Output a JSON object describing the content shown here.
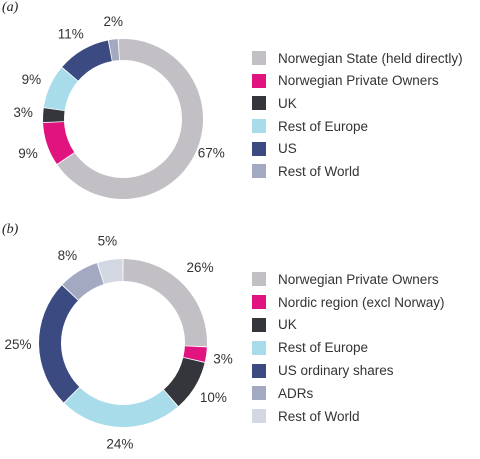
{
  "chart_data": [
    {
      "panel_label": "(a)",
      "type": "pie",
      "title": "",
      "categories": [
        "Norwegian State (held directly)",
        "Norwegian Private Owners",
        "UK",
        "Rest of Europe",
        "US",
        "Rest of World"
      ],
      "values": [
        67,
        9,
        3,
        9,
        11,
        2
      ],
      "labels": [
        "67%",
        "9%",
        "3%",
        "9%",
        "11%",
        "2%"
      ],
      "colors": [
        "#c2c0c5",
        "#e0137f",
        "#35363b",
        "#a9dcea",
        "#3b4b82",
        "#a4a9c2"
      ],
      "legend_position": "right"
    },
    {
      "panel_label": "(b)",
      "type": "pie",
      "title": "",
      "categories": [
        "Norwegian Private Owners",
        "Nordic region (excl Norway)",
        "UK",
        "Rest of Europe",
        "US ordinary shares",
        "ADRs",
        "Rest of World"
      ],
      "values": [
        26,
        3,
        10,
        24,
        25,
        8,
        5
      ],
      "labels": [
        "26%",
        "3%",
        "10%",
        "24%",
        "25%",
        "8%",
        "5%"
      ],
      "colors": [
        "#c2c0c5",
        "#e0137f",
        "#35363b",
        "#a9dcea",
        "#3b4b82",
        "#a4a9c2",
        "#d3d7e2"
      ],
      "legend_position": "right"
    }
  ]
}
